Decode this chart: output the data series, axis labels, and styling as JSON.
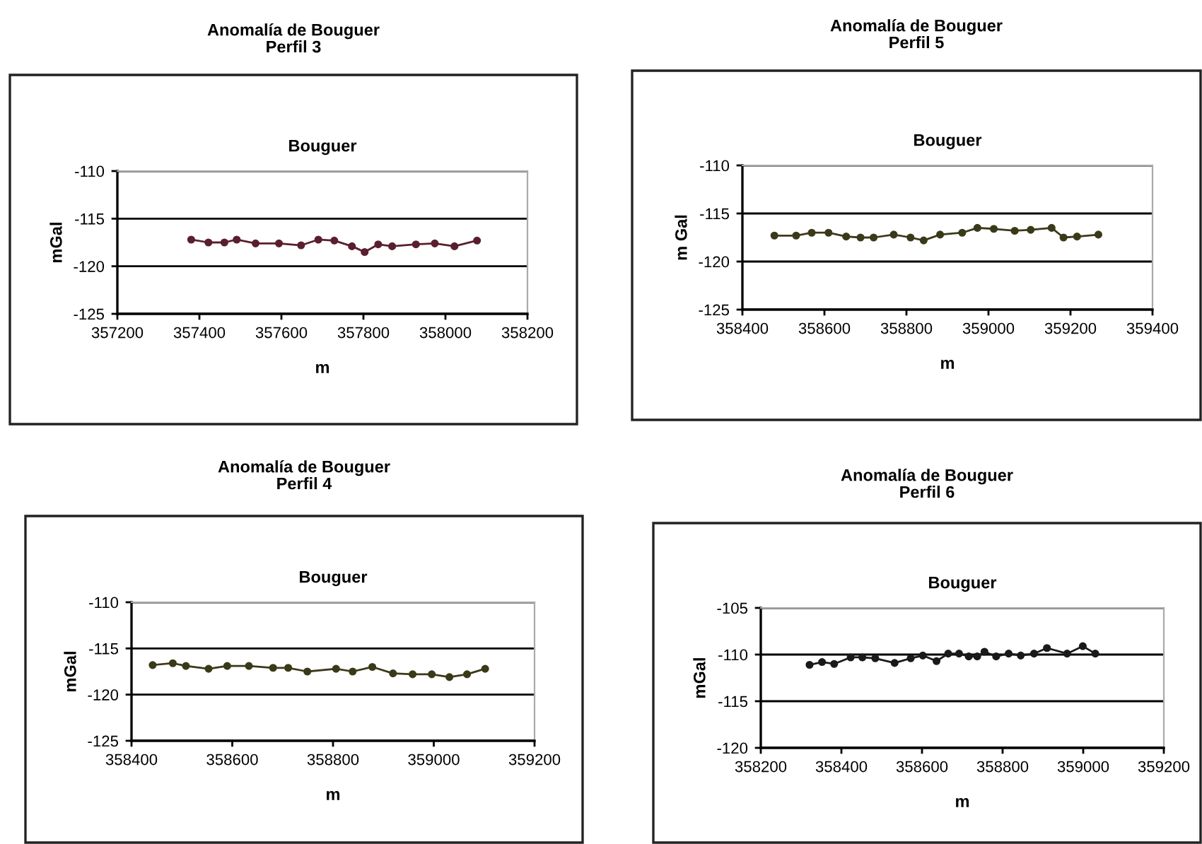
{
  "chart_data": [
    {
      "type": "line",
      "title": "Anomalía de Bouguer\nPerfil 3",
      "subtitle": "Bouguer",
      "xlabel": "m",
      "ylabel": "mGal",
      "xlim": [
        357200,
        358200
      ],
      "xticks": [
        357200,
        357400,
        357600,
        357800,
        358000,
        358200
      ],
      "ylim": [
        -125,
        -110
      ],
      "yticks": [
        -125,
        -120,
        -115,
        -110
      ],
      "grid": "y",
      "marker": "circle",
      "line_style": "solid",
      "series": [
        {
          "color": "#5a1f2e",
          "x": [
            357380,
            357422,
            357461,
            357491,
            357537,
            357594,
            357648,
            357690,
            357729,
            357772,
            357803,
            357836,
            357870,
            357928,
            357974,
            358022,
            358077
          ],
          "values": [
            -117.2,
            -117.5,
            -117.5,
            -117.2,
            -117.6,
            -117.6,
            -117.8,
            -117.2,
            -117.3,
            -117.9,
            -118.5,
            -117.7,
            -117.9,
            -117.7,
            -117.6,
            -117.9,
            -117.3
          ]
        }
      ]
    },
    {
      "type": "line",
      "title": "Anomalía de Bouguer\nPerfil 5",
      "subtitle": "Bouguer",
      "xlabel": "m",
      "ylabel": "m Gal",
      "xlim": [
        358400,
        359400
      ],
      "xticks": [
        358400,
        358600,
        358800,
        359000,
        359200,
        359400
      ],
      "ylim": [
        -125,
        -110
      ],
      "yticks": [
        -125,
        -120,
        -115,
        -110
      ],
      "grid": "y",
      "marker": "circle",
      "line_style": "solid",
      "series": [
        {
          "color": "#3a3a1a",
          "x": [
            358478,
            358531,
            358569,
            358610,
            358653,
            358688,
            358720,
            358769,
            358810,
            358842,
            358882,
            358936,
            358973,
            359013,
            359064,
            359103,
            359154,
            359183,
            359216,
            359268
          ],
          "values": [
            -117.3,
            -117.3,
            -117.0,
            -117.0,
            -117.4,
            -117.5,
            -117.5,
            -117.2,
            -117.5,
            -117.8,
            -117.2,
            -117.0,
            -116.5,
            -116.6,
            -116.8,
            -116.7,
            -116.5,
            -117.5,
            -117.4,
            -117.2
          ]
        }
      ]
    },
    {
      "type": "line",
      "title": "Anomalía de Bouguer\nPerfil 4",
      "subtitle": "Bouguer",
      "xlabel": "m",
      "ylabel": "mGal",
      "xlim": [
        358400,
        359200
      ],
      "xticks": [
        358400,
        358600,
        358800,
        359000,
        359200
      ],
      "ylim": [
        -125,
        -110
      ],
      "yticks": [
        -125,
        -120,
        -115,
        -110
      ],
      "grid": "y",
      "marker": "circle",
      "line_style": "solid",
      "series": [
        {
          "color": "#3a3a1a",
          "x": [
            358442,
            358482,
            358508,
            358553,
            358590,
            358633,
            358681,
            358711,
            358749,
            358806,
            358839,
            358878,
            358919,
            358958,
            358996,
            359031,
            359066,
            359102
          ],
          "values": [
            -116.8,
            -116.6,
            -116.9,
            -117.2,
            -116.9,
            -116.9,
            -117.1,
            -117.1,
            -117.5,
            -117.2,
            -117.5,
            -117.0,
            -117.7,
            -117.8,
            -117.8,
            -118.1,
            -117.8,
            -117.2
          ]
        }
      ]
    },
    {
      "type": "line",
      "title": "Anomalía de Bouguer\nPerfil 6",
      "subtitle": "Bouguer",
      "xlabel": "m",
      "ylabel": "mGal",
      "xlim": [
        358200,
        359200
      ],
      "xticks": [
        358200,
        358400,
        358600,
        358800,
        359000,
        359200
      ],
      "ylim": [
        -120,
        -105
      ],
      "yticks": [
        -120,
        -115,
        -110,
        -105
      ],
      "grid": "y",
      "marker": "circle",
      "line_style": "solid",
      "series": [
        {
          "color": "#1a1a1a",
          "x": [
            358321,
            358352,
            358382,
            358423,
            358452,
            358484,
            358532,
            358572,
            358602,
            358636,
            358665,
            358692,
            358716,
            358737,
            358755,
            358784,
            358815,
            358845,
            358878,
            358910,
            358960,
            358999,
            359030
          ],
          "values": [
            -111.1,
            -110.8,
            -111.0,
            -110.3,
            -110.3,
            -110.4,
            -110.9,
            -110.4,
            -110.1,
            -110.7,
            -109.9,
            -109.9,
            -110.2,
            -110.2,
            -109.7,
            -110.2,
            -109.9,
            -110.1,
            -109.9,
            -109.3,
            -109.9,
            -109.1,
            -109.9
          ]
        }
      ]
    }
  ]
}
